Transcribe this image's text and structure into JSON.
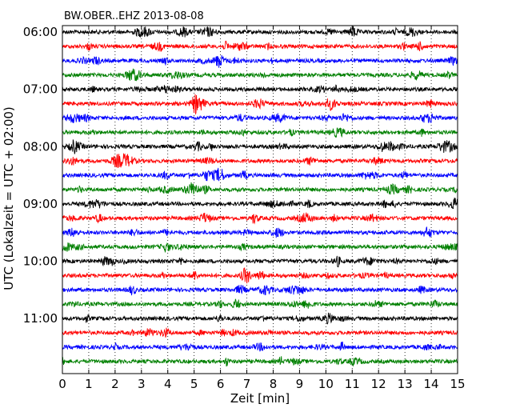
{
  "chart_data": {
    "type": "line",
    "title": "BW.OBER..EHZ 2013-08-08",
    "xlabel": "Zeit  [min]",
    "ylabel": "UTC (Lokalzeit = UTC + 02:00)",
    "xlim": [
      0,
      15
    ],
    "x_ticks": [
      "0",
      "1",
      "2",
      "3",
      "4",
      "5",
      "6",
      "7",
      "8",
      "9",
      "10",
      "11",
      "12",
      "13",
      "14",
      "15"
    ],
    "y_tick_labels": [
      "06:00",
      "07:00",
      "08:00",
      "09:00",
      "10:00",
      "11:00"
    ],
    "trace_start_times": [
      "06:00",
      "06:15",
      "06:30",
      "06:45",
      "07:00",
      "07:15",
      "07:30",
      "07:45",
      "08:00",
      "08:15",
      "08:30",
      "08:45",
      "09:00",
      "09:15",
      "09:30",
      "09:45",
      "10:00",
      "10:15",
      "10:30",
      "10:45",
      "11:00",
      "11:15",
      "11:30",
      "11:45"
    ],
    "trace_interval_min": 15,
    "trace_color_cycle": [
      "#000000",
      "#ff0000",
      "#0000ff",
      "#008000"
    ],
    "grid": "vertical dotted at each minute"
  }
}
